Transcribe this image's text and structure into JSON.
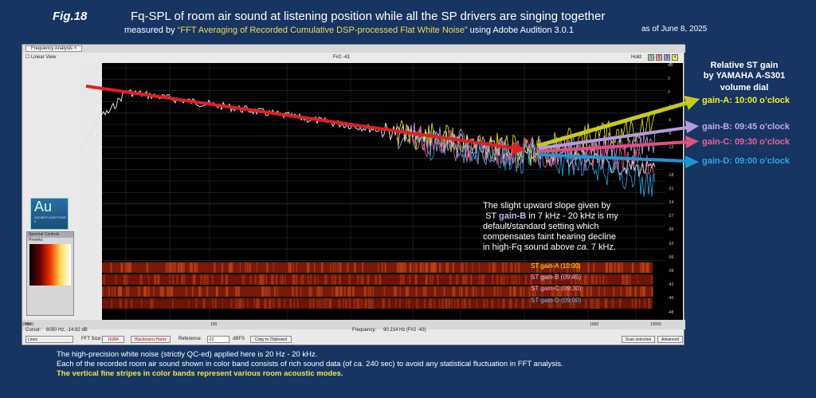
{
  "header": {
    "fig": "Fig.18",
    "title": "Fq-SPL of room air sound at listening position while all the SP drivers are singing together",
    "sub_prefix": "measured by ",
    "sub_quote": "“FFT Averaging of Recorded Cumulative DSP-processed Flat White Noise”",
    "sub_suffix": " using Adobe Audition 3.0.1",
    "asof": "as of June 8, 2025"
  },
  "window": {
    "tab": "Frequency Analysis",
    "tab_close": "×",
    "linear_view": "Linear View",
    "center_label": "F#2 -43",
    "hold_label": "Hold:",
    "hold_buttons": [
      "1",
      "2",
      "3",
      "4"
    ],
    "db_ticks": [
      "dB",
      "3",
      "0",
      "-3",
      "-6",
      "-9",
      "-12",
      "-15",
      "-18",
      "-21",
      "-24",
      "-27",
      "-30",
      "-33",
      "-36",
      "-39",
      "-42",
      "-45",
      "-48"
    ],
    "hz_ticks": [
      "Hz",
      "100",
      "1000",
      "10000",
      "20000"
    ],
    "cursor_label": "Cursor:",
    "cursor_value": "6050 Hz, -14.82 dB",
    "frequency_label": "Frequency:",
    "frequency_value": "90.214 Hz (F#2 -43)",
    "lines_select": "Lines",
    "fft_label": "FFT Size:",
    "fft_value": "16384",
    "window_value": "Blackmann-Harris",
    "reference_label": "Reference:",
    "reference_value": "-23",
    "dbfs": "dBFS",
    "copy_btn": "Copy to Clipboard",
    "scan_btn": "Scan selection",
    "advanced_btn": "Advanced"
  },
  "au_logo": {
    "text": "Au",
    "sub": "ADOBE® AUDITION® 3"
  },
  "panel": {
    "title": "Spectral Controls",
    "preset": "Presets:"
  },
  "annotations": {
    "rel_title": "Relative ST gain",
    "rel_sub": "by YAMAHA A-S301",
    "volume": "volume dial",
    "gains": [
      {
        "label": "gain-A: 10:00 o’clock",
        "color": "#f5f020"
      },
      {
        "label": "gain-B: 09:45 o’clock",
        "color": "#c3a6ee"
      },
      {
        "label": "gain-C: 09:30 o’clock",
        "color": "#ef5f93"
      },
      {
        "label": "gain-D: 09:00 o’clock",
        "color": "#2ea6e6"
      }
    ],
    "note_lines": [
      "The slight upward slope given by",
      "ST ",
      "gain-B",
      " in  7 kHz - 20 kHz is my",
      "default/standard setting which",
      "compensates faint hearing decline",
      "in high-Fq sound above ",
      "ca.",
      " 7 kHz."
    ],
    "bands": [
      {
        "label": "ST gain-A (10:00)",
        "color": "#f5f020"
      },
      {
        "label": "ST gain-B (09:45)",
        "color": "#d6c4ff"
      },
      {
        "label": "ST gain-C (09:30)",
        "color": "#ff9ec4"
      },
      {
        "label": "ST gain-D (09:00)",
        "color": "#4fc3ff"
      }
    ]
  },
  "footer": {
    "line1": "The high-precision white noise (strictly QC-ed) applied here is 20 Hz - 20 kHz.",
    "line2a": "Each of the recorded room air sound shown in color band consists of rich sound data (of ",
    "line2b": "ca.",
    "line2c": " 240 sec) to avoid any statistical fluctuation in FFT analysis.",
    "line3": "The vertical fine stripes in color bands represent various room acoustic modes."
  }
}
